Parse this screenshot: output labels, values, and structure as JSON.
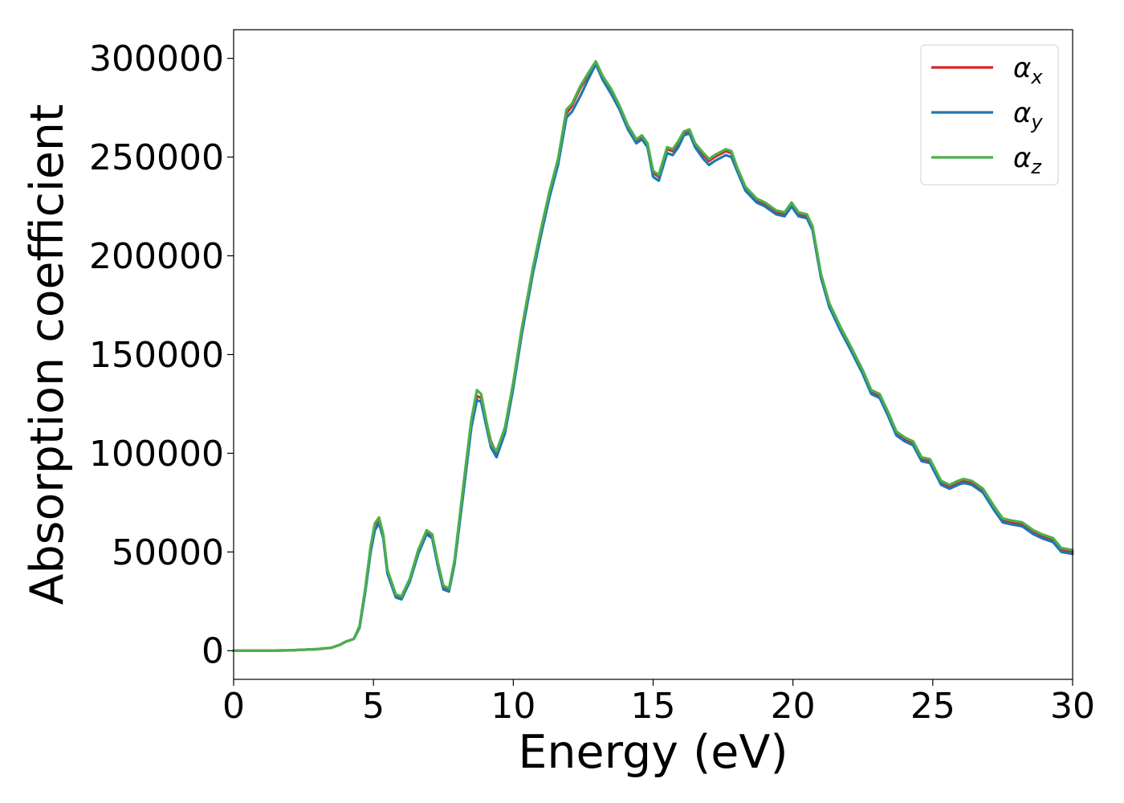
{
  "chart_data": {
    "type": "line",
    "xlabel": "Energy (eV)",
    "ylabel": "Absorption coefficient",
    "xlim": [
      0,
      30
    ],
    "ylim": [
      -14500,
      314500
    ],
    "xticks": [
      "0",
      "5",
      "10",
      "15",
      "20",
      "25",
      "30"
    ],
    "yticks": [
      "0",
      "50000",
      "100000",
      "150000",
      "200000",
      "250000",
      "300000"
    ],
    "grid": false,
    "legend_position": "top-right",
    "series": [
      {
        "name": "α_x",
        "legend_base": "α",
        "legend_sub": "x",
        "color": "#d62728",
        "x": [
          0,
          1,
          2,
          3,
          3.5,
          3.8,
          4.0,
          4.3,
          4.5,
          4.7,
          4.9,
          5.05,
          5.2,
          5.35,
          5.5,
          5.8,
          6.0,
          6.3,
          6.6,
          6.9,
          7.1,
          7.3,
          7.5,
          7.7,
          7.9,
          8.2,
          8.5,
          8.7,
          8.85,
          9.0,
          9.2,
          9.4,
          9.7,
          10.0,
          10.3,
          10.7,
          11.0,
          11.3,
          11.6,
          11.9,
          12.1,
          12.4,
          12.7,
          12.95,
          13.2,
          13.5,
          13.8,
          14.1,
          14.4,
          14.6,
          14.8,
          15.0,
          15.2,
          15.5,
          15.7,
          15.9,
          16.1,
          16.3,
          16.5,
          16.8,
          17.0,
          17.2,
          17.6,
          17.8,
          18.0,
          18.3,
          18.7,
          19.0,
          19.4,
          19.7,
          19.95,
          20.2,
          20.5,
          20.7,
          21.0,
          21.3,
          21.7,
          22.0,
          22.5,
          22.8,
          23.1,
          23.4,
          23.7,
          24.0,
          24.3,
          24.6,
          24.9,
          25.3,
          25.6,
          25.9,
          26.1,
          26.4,
          26.8,
          27.2,
          27.5,
          27.8,
          28.2,
          28.6,
          28.9,
          29.3,
          29.6,
          30.0
        ],
        "values": [
          0,
          0,
          200,
          800,
          1500,
          3000,
          4500,
          6000,
          12000,
          30000,
          52000,
          63000,
          66000,
          58000,
          40000,
          28000,
          27000,
          36000,
          50000,
          60000,
          58000,
          44000,
          32000,
          31000,
          45000,
          80000,
          115000,
          129000,
          128000,
          118000,
          106000,
          100000,
          112000,
          135000,
          162000,
          193000,
          213000,
          232000,
          248000,
          272000,
          276000,
          285000,
          292000,
          298000,
          290000,
          283000,
          275000,
          265000,
          258000,
          260000,
          256000,
          242000,
          240000,
          254000,
          253000,
          257000,
          262000,
          263000,
          256000,
          251000,
          248000,
          250000,
          253000,
          252000,
          244000,
          234000,
          228000,
          226000,
          222000,
          221000,
          226000,
          221000,
          220000,
          214000,
          190000,
          175000,
          163000,
          155000,
          141000,
          131000,
          129000,
          120000,
          110000,
          107000,
          105000,
          97000,
          96000,
          85000,
          83000,
          85000,
          86000,
          85000,
          81000,
          72000,
          66000,
          65000,
          64000,
          60000,
          58000,
          56000,
          51000,
          50000
        ]
      },
      {
        "name": "α_y",
        "legend_base": "α",
        "legend_sub": "y",
        "color": "#1f77b4",
        "x": [
          0,
          1,
          2,
          3,
          3.5,
          3.8,
          4.0,
          4.3,
          4.5,
          4.7,
          4.9,
          5.05,
          5.2,
          5.35,
          5.5,
          5.8,
          6.0,
          6.3,
          6.6,
          6.9,
          7.1,
          7.3,
          7.5,
          7.7,
          7.9,
          8.2,
          8.5,
          8.7,
          8.85,
          9.0,
          9.2,
          9.4,
          9.7,
          10.0,
          10.3,
          10.7,
          11.0,
          11.3,
          11.6,
          11.9,
          12.1,
          12.4,
          12.7,
          12.95,
          13.2,
          13.5,
          13.8,
          14.1,
          14.4,
          14.6,
          14.8,
          15.0,
          15.2,
          15.5,
          15.7,
          15.9,
          16.1,
          16.3,
          16.5,
          16.8,
          17.0,
          17.2,
          17.6,
          17.8,
          18.0,
          18.3,
          18.7,
          19.0,
          19.4,
          19.7,
          19.95,
          20.2,
          20.5,
          20.7,
          21.0,
          21.3,
          21.7,
          22.0,
          22.5,
          22.8,
          23.1,
          23.4,
          23.7,
          24.0,
          24.3,
          24.6,
          24.9,
          25.3,
          25.6,
          25.9,
          26.1,
          26.4,
          26.8,
          27.2,
          27.5,
          27.8,
          28.2,
          28.6,
          28.9,
          29.3,
          29.6,
          30.0
        ],
        "values": [
          0,
          0,
          200,
          800,
          1500,
          3000,
          4500,
          6000,
          11500,
          29000,
          50000,
          61000,
          64500,
          57000,
          39000,
          27000,
          26000,
          35000,
          49000,
          59000,
          57000,
          43000,
          31000,
          30000,
          44000,
          78000,
          113000,
          127000,
          126000,
          116000,
          103000,
          98000,
          110000,
          133000,
          160000,
          191000,
          211000,
          230000,
          246000,
          270000,
          273000,
          281000,
          290000,
          297000,
          289000,
          282000,
          274000,
          264000,
          257000,
          259000,
          255000,
          240000,
          238000,
          252000,
          251000,
          255000,
          261000,
          262000,
          255000,
          249000,
          246000,
          248000,
          251000,
          250000,
          243000,
          233000,
          227000,
          225000,
          221000,
          220000,
          225000,
          220000,
          219000,
          213000,
          189000,
          174000,
          162000,
          154000,
          140000,
          130000,
          128000,
          119000,
          109000,
          106000,
          104000,
          96000,
          95000,
          84000,
          82000,
          84000,
          85000,
          84000,
          80000,
          71000,
          65000,
          64000,
          63000,
          59000,
          57000,
          55000,
          50000,
          49000
        ]
      },
      {
        "name": "α_z",
        "legend_base": "α",
        "legend_sub": "z",
        "color": "#4daf4a",
        "x": [
          0,
          1,
          2,
          3,
          3.5,
          3.8,
          4.0,
          4.3,
          4.5,
          4.7,
          4.9,
          5.05,
          5.2,
          5.35,
          5.5,
          5.8,
          6.0,
          6.3,
          6.6,
          6.9,
          7.1,
          7.3,
          7.5,
          7.7,
          7.9,
          8.2,
          8.5,
          8.7,
          8.85,
          9.0,
          9.2,
          9.4,
          9.7,
          10.0,
          10.3,
          10.7,
          11.0,
          11.3,
          11.6,
          11.9,
          12.1,
          12.4,
          12.7,
          12.95,
          13.2,
          13.5,
          13.8,
          14.1,
          14.4,
          14.6,
          14.8,
          15.0,
          15.2,
          15.5,
          15.7,
          15.9,
          16.1,
          16.3,
          16.5,
          16.8,
          17.0,
          17.2,
          17.6,
          17.8,
          18.0,
          18.3,
          18.7,
          19.0,
          19.4,
          19.7,
          19.95,
          20.2,
          20.5,
          20.7,
          21.0,
          21.3,
          21.7,
          22.0,
          22.5,
          22.8,
          23.1,
          23.4,
          23.7,
          24.0,
          24.3,
          24.6,
          24.9,
          25.3,
          25.6,
          25.9,
          26.1,
          26.4,
          26.8,
          27.2,
          27.5,
          27.8,
          28.2,
          28.6,
          28.9,
          29.3,
          29.6,
          30.0
        ],
        "values": [
          0,
          0,
          200,
          800,
          1500,
          3000,
          4500,
          6000,
          12500,
          31000,
          53000,
          64500,
          67500,
          59000,
          41000,
          28500,
          27500,
          36500,
          51000,
          61000,
          59000,
          45000,
          33000,
          31500,
          46000,
          82000,
          117000,
          132000,
          130000,
          119000,
          105000,
          101000,
          113000,
          136000,
          163000,
          194000,
          214000,
          233000,
          249000,
          274000,
          277000,
          286000,
          293000,
          298500,
          291000,
          284500,
          276000,
          266000,
          259000,
          261000,
          257000,
          243000,
          241000,
          255000,
          254000,
          258000,
          263000,
          264000,
          257000,
          252000,
          249000,
          251000,
          254000,
          253000,
          245000,
          235000,
          229000,
          227000,
          223000,
          222000,
          227000,
          222000,
          221000,
          215000,
          191000,
          176000,
          164000,
          156000,
          142000,
          132000,
          130000,
          121000,
          111000,
          108000,
          106000,
          98000,
          97000,
          86000,
          84000,
          86000,
          87000,
          86000,
          82000,
          73000,
          67000,
          66000,
          65000,
          61000,
          59000,
          57000,
          52000,
          51000
        ]
      }
    ]
  }
}
